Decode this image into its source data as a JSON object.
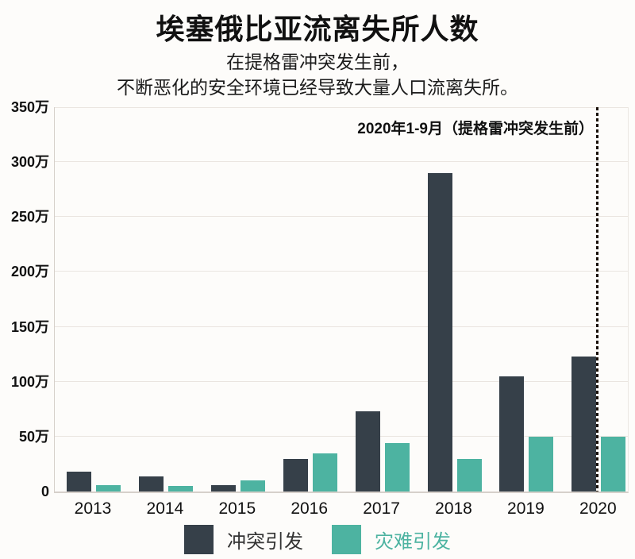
{
  "header": {
    "title": "埃塞俄比亚流离失所人数",
    "subtitle_line1": "在提格雷冲突发生前，",
    "subtitle_line2": "不断恶化的安全环境已经导致大量人口流离失所。"
  },
  "annotation": {
    "text": "2020年1-9月（提格雷冲突发生前）"
  },
  "legend": [
    {
      "label": "冲突引发",
      "swatch_color": "#364049",
      "text_color": "#333333"
    },
    {
      "label": "灾难引发",
      "swatch_color": "#4db3a1",
      "text_color": "#4db3a1"
    }
  ],
  "colors": {
    "conflict_bar": "#364049",
    "disaster_bar": "#4db3a1",
    "gridline": "#eae5e0",
    "dotted_line": "#191008",
    "background": "#fdfcfa"
  },
  "chart_data": {
    "type": "bar",
    "title": "埃塞俄比亚流离失所人数",
    "subtitle": "在提格雷冲突发生前，不断恶化的安全环境已经导致大量人口流离失所。",
    "unit": "万",
    "categories": [
      "2013",
      "2014",
      "2015",
      "2016",
      "2017",
      "2018",
      "2019",
      "2020"
    ],
    "series": [
      {
        "name": "冲突引发",
        "color": "#364049",
        "values": [
          18,
          14,
          6,
          30,
          73,
          290,
          105,
          123
        ]
      },
      {
        "name": "灾难引发",
        "color": "#4db3a1",
        "values": [
          6,
          5,
          10,
          35,
          44,
          30,
          50,
          50
        ]
      }
    ],
    "ylim": [
      0,
      350
    ],
    "y_ticks": [
      {
        "v": 350,
        "label": "350万"
      },
      {
        "v": 300,
        "label": "300万"
      },
      {
        "v": 250,
        "label": "250万"
      },
      {
        "v": 200,
        "label": "200万"
      },
      {
        "v": 150,
        "label": "150万"
      },
      {
        "v": 100,
        "label": "100万"
      },
      {
        "v": 50,
        "label": "50万"
      },
      {
        "v": 0,
        "label": "0"
      }
    ],
    "grid": true,
    "legend_position": "bottom",
    "annotation": "2020年1-9月（提格雷冲突发生前）",
    "annotation_marker": "dotted vertical line at right edge of 2020 conflict bar"
  }
}
